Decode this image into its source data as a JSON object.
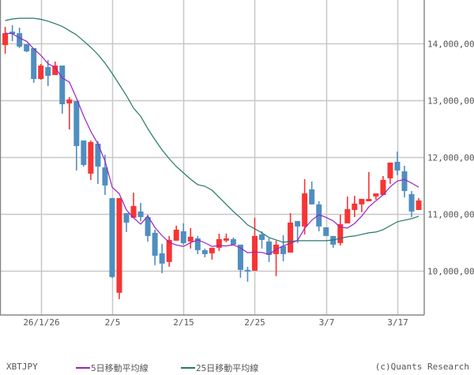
{
  "chart_data": {
    "type": "candlestick",
    "symbol": "XBTJPY",
    "credit": "(c)Quants Research",
    "dates": [
      "1/21",
      "1/22",
      "1/23",
      "1/24",
      "1/25",
      "1/26",
      "1/27",
      "1/28",
      "1/29",
      "1/30",
      "1/31",
      "2/1",
      "2/2",
      "2/3",
      "2/4",
      "2/5",
      "2/6",
      "2/7",
      "2/8",
      "2/9",
      "2/10",
      "2/11",
      "2/12",
      "2/13",
      "2/14",
      "2/15",
      "2/16",
      "2/17",
      "2/18",
      "2/19",
      "2/20",
      "2/21",
      "2/22",
      "2/23",
      "2/24",
      "2/25",
      "2/26",
      "2/27",
      "2/28",
      "3/1",
      "3/2",
      "3/3",
      "3/4",
      "3/5",
      "3/6",
      "3/7",
      "3/8",
      "3/9",
      "3/10",
      "3/11",
      "3/12",
      "3/13",
      "3/14",
      "3/15",
      "3/16",
      "3/17",
      "3/18",
      "3/19",
      "3/20"
    ],
    "open": [
      13972,
      14208,
      14180,
      13986,
      13917,
      13375,
      13583,
      13444,
      13611,
      12944,
      12986,
      12292,
      11708,
      12236,
      11819,
      11278,
      9611,
      11014,
      10931,
      11042,
      10944,
      10667,
      10306,
      10153,
      10528,
      10694,
      10514,
      10569,
      10361,
      10306,
      10403,
      10528,
      10556,
      10458,
      10014,
      10000,
      10639,
      10514,
      10292,
      10431,
      10319,
      10875,
      10778,
      11431,
      11167,
      10764,
      10611,
      10486,
      10833,
      11069,
      11167,
      11222,
      11306,
      11333,
      11625,
      11917,
      11750,
      11347,
      11069
    ],
    "high": [
      14292,
      14319,
      14278,
      13986,
      13917,
      13639,
      13708,
      13680,
      13611,
      13055,
      12986,
      12292,
      12292,
      12278,
      12042,
      11278,
      11278,
      11014,
      11375,
      11194,
      10986,
      10722,
      10472,
      10611,
      10792,
      10833,
      10750,
      10611,
      10389,
      10403,
      10653,
      10653,
      10583,
      10458,
      10069,
      10931,
      10694,
      10569,
      10528,
      10625,
      11014,
      10875,
      11611,
      11569,
      11222,
      10764,
      10611,
      10986,
      11306,
      11319,
      11264,
      11736,
      11361,
      11667,
      11903,
      12097,
      11847,
      11403,
      11278
    ],
    "low": [
      13820,
      14042,
      13917,
      13847,
      13306,
      13361,
      13250,
      13444,
      12764,
      12486,
      11764,
      11830,
      11597,
      11528,
      11333,
      9870,
      9500,
      10681,
      10931,
      10870,
      10514,
      10097,
      9958,
      10069,
      10528,
      10458,
      10389,
      10292,
      10236,
      10194,
      10347,
      10500,
      10458,
      9875,
      9806,
      10000,
      10389,
      10153,
      9903,
      10167,
      10319,
      10486,
      10639,
      11167,
      10694,
      10611,
      10403,
      10444,
      10833,
      10944,
      11028,
      11222,
      11250,
      11333,
      11528,
      11681,
      11292,
      10944,
      11069
    ],
    "close": [
      14180,
      14167,
      13944,
      13861,
      13375,
      13611,
      13431,
      13611,
      12930,
      13014,
      12194,
      11861,
      12264,
      11833,
      11500,
      9889,
      11278,
      10847,
      11139,
      10944,
      10611,
      10264,
      10125,
      10542,
      10722,
      10486,
      10597,
      10361,
      10292,
      10403,
      10556,
      10569,
      10458,
      10014,
      9986,
      10611,
      10542,
      10278,
      10458,
      10292,
      10847,
      10778,
      11361,
      11167,
      10778,
      10611,
      10458,
      10819,
      11083,
      11181,
      11264,
      11264,
      11361,
      11597,
      11903,
      11764,
      11403,
      11042,
      11236
    ],
    "ma25": [
      14403,
      14431,
      14444,
      14444,
      14444,
      14424,
      14393,
      14349,
      14299,
      14226,
      14151,
      14044,
      13932,
      13806,
      13653,
      13472,
      13278,
      13083,
      12861,
      12717,
      12500,
      12306,
      12125,
      11972,
      11833,
      11722,
      11611,
      11514,
      11486,
      11417,
      11292,
      11167,
      11042,
      10931,
      10806,
      10736,
      10667,
      10583,
      10542,
      10500,
      10514,
      10528,
      10528,
      10528,
      10528,
      10528,
      10542,
      10569,
      10597,
      10611,
      10639,
      10667,
      10681,
      10722,
      10792,
      10861,
      10889,
      10917,
      10958
    ],
    "ylim": [
      9220,
      14765
    ],
    "y_ticks": [
      10000,
      11000,
      12000,
      13000,
      14000
    ],
    "y_tick_labels": [
      "10,000,00",
      "11,000,00",
      "12,000,00",
      "13,000,00",
      "14,000,00"
    ],
    "x_ticks": [
      "1/26",
      "2/5",
      "2/15",
      "2/25",
      "3/7",
      "3/17"
    ],
    "x_tick_labels": [
      "26/1/26",
      "2/5",
      "2/15",
      "2/25",
      "3/7",
      "3/17"
    ],
    "grid": true,
    "y_axis_side": "right",
    "legend_placement": "bottom",
    "series": [
      {
        "name": "5日移動平均線",
        "color": "#9b22c0"
      },
      {
        "name": "25日移動平均線",
        "color": "#23786a"
      }
    ],
    "colors": {
      "up": "#f83434",
      "down": "#4f8ec0",
      "grid": "#c8c8c8",
      "axis": "#888888"
    }
  }
}
